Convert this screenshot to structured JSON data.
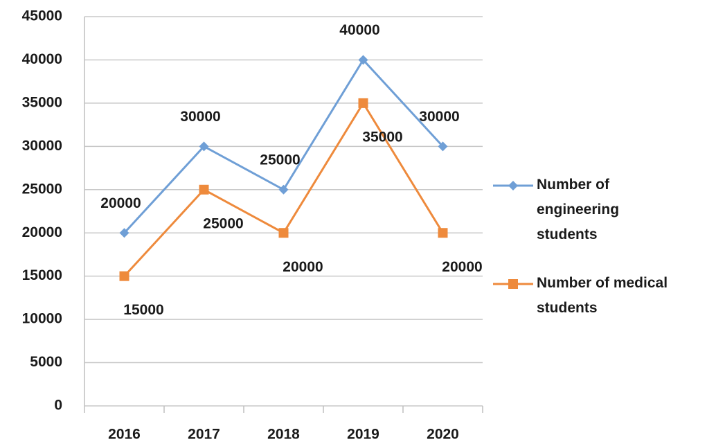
{
  "chart_data": {
    "type": "line",
    "categories": [
      "2016",
      "2017",
      "2018",
      "2019",
      "2020"
    ],
    "series": [
      {
        "name": "Number of engineering students",
        "color": "#6f9fd6",
        "marker": "diamond",
        "values": [
          20000,
          30000,
          25000,
          40000,
          30000
        ]
      },
      {
        "name": "Number of medical students",
        "color": "#ee8a3c",
        "marker": "square",
        "values": [
          15000,
          25000,
          20000,
          35000,
          20000
        ]
      }
    ],
    "ylim": [
      0,
      45000
    ],
    "yticks": [
      0,
      5000,
      10000,
      15000,
      20000,
      25000,
      30000,
      35000,
      40000,
      45000
    ],
    "grid": true,
    "legend": "right"
  }
}
